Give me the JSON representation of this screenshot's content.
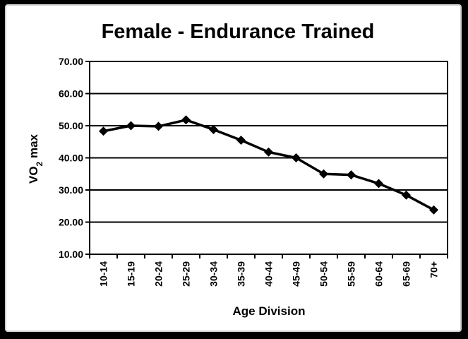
{
  "chart_data": {
    "type": "line",
    "title": "Female - Endurance Trained",
    "ylabel_main": "VO",
    "ylabel_sub": "2",
    "ylabel_suffix": " max",
    "xlabel": "Age Division",
    "categories": [
      "10-14",
      "15-19",
      "20-24",
      "25-29",
      "30-34",
      "35-39",
      "40-44",
      "45-49",
      "50-54",
      "55-59",
      "60-64",
      "65-69",
      "70+"
    ],
    "series": [
      {
        "values": [
          48.3,
          50.0,
          49.8,
          51.8,
          48.8,
          45.5,
          41.8,
          40.0,
          35.0,
          34.7,
          32.0,
          28.4,
          23.8
        ]
      }
    ],
    "ylim": [
      10,
      70
    ],
    "yticks": [
      10,
      20,
      30,
      40,
      50,
      60,
      70
    ],
    "ytick_labels": [
      "10.00",
      "20.00",
      "30.00",
      "40.00",
      "50.00",
      "60.00",
      "70.00"
    ],
    "grid": true,
    "line_color": "#000000",
    "marker": "diamond"
  }
}
